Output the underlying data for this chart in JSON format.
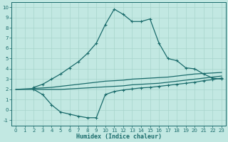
{
  "xlabel": "Humidex (Indice chaleur)",
  "background_color": "#c2e8e2",
  "grid_color": "#a8d4cc",
  "line_color": "#1a6b6b",
  "xlim": [
    -0.5,
    23.5
  ],
  "ylim": [
    -1.5,
    10.5
  ],
  "xticks": [
    0,
    1,
    2,
    3,
    4,
    5,
    6,
    7,
    8,
    9,
    10,
    11,
    12,
    13,
    14,
    15,
    16,
    17,
    18,
    19,
    20,
    21,
    22,
    23
  ],
  "yticks": [
    -1,
    0,
    1,
    2,
    3,
    4,
    5,
    6,
    7,
    8,
    9,
    10
  ],
  "curve1_x": [
    2,
    3,
    4,
    5,
    6,
    7,
    8,
    9,
    10,
    11,
    12,
    13,
    14,
    15,
    16,
    17,
    18,
    19,
    20,
    21,
    22,
    23
  ],
  "curve1_y": [
    2.2,
    2.5,
    3.0,
    3.5,
    4.1,
    4.7,
    5.5,
    6.5,
    8.3,
    9.8,
    9.3,
    8.6,
    8.6,
    8.85,
    6.5,
    5.0,
    4.8,
    4.1,
    4.0,
    3.5,
    3.1,
    3.0
  ],
  "curve2_x": [
    0,
    2,
    3,
    4,
    5,
    6,
    7,
    8,
    9,
    10,
    11,
    12,
    13,
    14,
    15,
    16,
    17,
    18,
    19,
    20,
    21,
    22,
    23
  ],
  "curve2_y": [
    2.0,
    2.1,
    2.15,
    2.2,
    2.3,
    2.4,
    2.5,
    2.6,
    2.7,
    2.8,
    2.85,
    2.9,
    3.0,
    3.05,
    3.1,
    3.15,
    3.2,
    3.3,
    3.4,
    3.5,
    3.55,
    3.6,
    3.65
  ],
  "curve3_x": [
    2,
    3,
    4,
    5,
    6,
    7,
    8,
    9,
    10,
    11,
    12,
    13,
    14,
    15,
    16,
    17,
    18,
    19,
    20,
    21,
    22,
    23
  ],
  "curve3_y": [
    2.0,
    1.5,
    0.5,
    -0.2,
    -0.4,
    -0.6,
    -0.75,
    -0.75,
    1.5,
    1.8,
    1.95,
    2.05,
    2.15,
    2.2,
    2.3,
    2.4,
    2.5,
    2.6,
    2.7,
    2.85,
    2.95,
    3.1
  ],
  "curve4_x": [
    0,
    2,
    3,
    4,
    5,
    6,
    7,
    8,
    9,
    10,
    11,
    12,
    13,
    14,
    15,
    16,
    17,
    18,
    19,
    20,
    21,
    22,
    23
  ],
  "curve4_y": [
    2.0,
    2.0,
    2.0,
    2.0,
    2.0,
    2.05,
    2.1,
    2.15,
    2.2,
    2.25,
    2.3,
    2.35,
    2.45,
    2.5,
    2.55,
    2.6,
    2.7,
    2.8,
    2.9,
    3.0,
    3.1,
    3.2,
    3.3
  ]
}
